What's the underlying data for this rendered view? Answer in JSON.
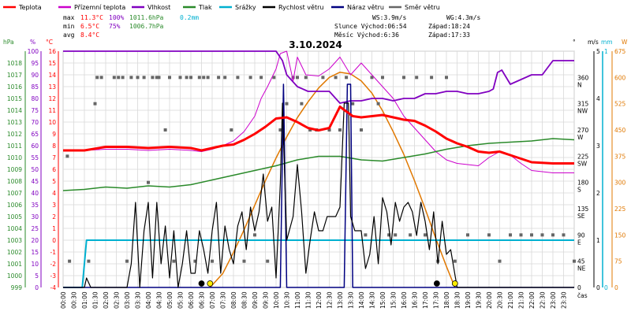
{
  "legend": [
    {
      "label": "Teplota",
      "color": "#ff0000"
    },
    {
      "label": "Přízemní teplota",
      "color": "#cc00cc"
    },
    {
      "label": "Vlhkost",
      "color": "#8000c0"
    },
    {
      "label": "Tlak",
      "color": "#2a8a2a"
    },
    {
      "label": "Srážky",
      "color": "#00b0d0"
    },
    {
      "label": "Rychlost větru",
      "color": "#000000"
    },
    {
      "label": "Náraz větru",
      "color": "#000080"
    },
    {
      "label": "Směr větru",
      "color": "#666666"
    }
  ],
  "stats": {
    "max_label": "max",
    "max_temp": "11.3°C",
    "max_hum": "100%",
    "max_press": "1011.6hPa",
    "max_rain": "0.2mm",
    "min_label": "min",
    "min_temp": "6.5°C",
    "min_hum": "75%",
    "min_press": "1006.7hPa",
    "avg_label": "avg",
    "avg_temp": "8.4°C"
  },
  "wind_info": {
    "ws": "WS:3.9m/s",
    "wg": "WG:4.3m/s"
  },
  "sun_info": {
    "sunrise": "Slunce Východ:06:54",
    "sunset": "Západ:18:24"
  },
  "moon_info": {
    "rise": "Měsíc  Východ:6:36",
    "set": "Západ:17:33"
  },
  "axes_units": {
    "hpa": "hPa",
    "pct": "%",
    "degc": "°C",
    "deg": "°",
    "ms": "m/s",
    "mm": "mm",
    "wm2": "W"
  },
  "xlabel": "čas",
  "colors": {
    "temp": "#ff0000",
    "ground": "#cc00cc",
    "hum": "#8000c0",
    "press": "#2a8a2a",
    "rain": "#00b0d0",
    "wind": "#000000",
    "gust": "#000080",
    "dir": "#666666",
    "solar": "#e07800",
    "grid": "#d8d8d8"
  },
  "chart_data": {
    "type": "line",
    "title": "3.10.2024",
    "xlim": [
      0,
      24
    ],
    "x_ticks": [
      "00:00",
      "00:30",
      "01:00",
      "01:30",
      "02:00",
      "02:30",
      "03:00",
      "03:30",
      "04:00",
      "04:30",
      "05:00",
      "05:30",
      "06:00",
      "06:30",
      "07:00",
      "07:30",
      "08:00",
      "08:30",
      "09:00",
      "09:30",
      "10:00",
      "10:30",
      "11:00",
      "11:30",
      "12:00",
      "12:30",
      "13:00",
      "13:30",
      "14:00",
      "14:30",
      "15:00",
      "15:30",
      "16:00",
      "16:30",
      "17:00",
      "17:30",
      "18:00",
      "18:30",
      "19:00",
      "19:30",
      "20:00",
      "20:30",
      "21:00",
      "21:30",
      "22:00",
      "22:30",
      "23:00",
      "23:30"
    ],
    "axes": {
      "pressure_hpa": {
        "ylim": [
          999,
          1019
        ],
        "ticks": [
          999,
          1000,
          1001,
          1002,
          1003,
          1004,
          1005,
          1006,
          1007,
          1008,
          1009,
          1010,
          1011,
          1012,
          1013,
          1014,
          1015,
          1016,
          1017,
          1018
        ]
      },
      "humidity_pct": {
        "ylim": [
          0,
          100
        ],
        "ticks": [
          0,
          5,
          10,
          15,
          20,
          25,
          30,
          35,
          40,
          45,
          50,
          55,
          60,
          65,
          70,
          75,
          80,
          85,
          90,
          95,
          100
        ]
      },
      "temperature_c": {
        "ylim": [
          -4,
          16
        ],
        "ticks": [
          -4,
          -3,
          -2,
          -1,
          0,
          1,
          2,
          3,
          4,
          5,
          6,
          7,
          8,
          9,
          10,
          11,
          12,
          13,
          14,
          15,
          16
        ]
      },
      "wind_dir_deg": {
        "ticks": [
          {
            "v": 0,
            "l": "0"
          },
          {
            "v": 45,
            "l": "45"
          },
          {
            "v": 90,
            "l": "90"
          },
          {
            "v": 135,
            "l": "135"
          },
          {
            "v": 180,
            "l": "180"
          },
          {
            "v": 225,
            "l": "225"
          },
          {
            "v": 270,
            "l": "270"
          },
          {
            "v": 315,
            "l": "315"
          },
          {
            "v": 360,
            "l": "360"
          }
        ],
        "names": [
          {
            "v": 45,
            "l": "NE"
          },
          {
            "v": 90,
            "l": "E"
          },
          {
            "v": 135,
            "l": "SE"
          },
          {
            "v": 180,
            "l": "S"
          },
          {
            "v": 225,
            "l": "SW"
          },
          {
            "v": 270,
            "l": "W"
          },
          {
            "v": 315,
            "l": "NW"
          },
          {
            "v": 360,
            "l": "N"
          }
        ]
      },
      "wind_ms": {
        "ylim": [
          0,
          5
        ],
        "ticks": [
          0,
          1,
          2,
          3,
          4,
          5
        ]
      },
      "rain_mm": {
        "ylim": [
          0,
          1
        ],
        "ticks": [
          0,
          1
        ]
      },
      "solar_w": {
        "ylim": [
          0,
          675
        ],
        "ticks": [
          0,
          75,
          150,
          225,
          300,
          375,
          450,
          525,
          600,
          675
        ]
      }
    },
    "series": [
      {
        "name": "Teplota",
        "axis": "temperature_c",
        "x": [
          0,
          1,
          2,
          3,
          4,
          5,
          6,
          6.5,
          7,
          7.5,
          8,
          8.5,
          9,
          9.5,
          10,
          10.5,
          11,
          11.5,
          12,
          12.5,
          13,
          13.3,
          13.6,
          14,
          15,
          16,
          16.5,
          17,
          17.5,
          18,
          18.5,
          19,
          19.5,
          20,
          20.5,
          21,
          21.5,
          22,
          23,
          24
        ],
        "y": [
          7.6,
          7.6,
          7.9,
          7.9,
          7.8,
          7.9,
          7.8,
          7.6,
          7.8,
          8,
          8.1,
          8.5,
          9,
          9.6,
          10.3,
          10.4,
          10,
          9.5,
          9.3,
          9.5,
          11.3,
          10.9,
          10.5,
          10.4,
          10.6,
          10.2,
          10.1,
          9.7,
          9.2,
          8.6,
          8.2,
          7.9,
          7.5,
          7.4,
          7.5,
          7.2,
          6.9,
          6.6,
          6.5,
          6.5
        ]
      },
      {
        "name": "Přízemní teplota",
        "axis": "temperature_c",
        "x": [
          0,
          1,
          2,
          3,
          4,
          5,
          6,
          6.5,
          7,
          7.5,
          8,
          8.5,
          9,
          9.3,
          9.6,
          10,
          10.2,
          10.5,
          10.8,
          11,
          11.4,
          12,
          12.5,
          13,
          13.5,
          14,
          14.5,
          15,
          15.5,
          16,
          16.5,
          17,
          17.5,
          18,
          18.5,
          19,
          19.5,
          20,
          20.5,
          21,
          21.5,
          22,
          23,
          24
        ],
        "y": [
          7.6,
          7.6,
          7.7,
          7.7,
          7.6,
          7.7,
          7.6,
          7.5,
          7.7,
          8,
          8.4,
          9.2,
          10.5,
          12,
          13,
          14.5,
          15.8,
          16,
          13.5,
          15.5,
          14,
          13.9,
          14.5,
          15.5,
          14,
          15,
          14,
          13,
          12,
          10.5,
          9.5,
          8.5,
          7.5,
          6.8,
          6.5,
          6.4,
          6.3,
          7,
          7.5,
          7.2,
          6.5,
          5.9,
          5.7,
          5.7
        ]
      },
      {
        "name": "Vlhkost",
        "axis": "humidity_pct",
        "x": [
          0,
          1,
          2,
          3,
          4,
          5,
          6,
          7,
          8,
          9,
          10,
          10.3,
          10.5,
          11,
          11.5,
          12,
          12.5,
          13,
          13.5,
          14,
          14.5,
          15,
          15.5,
          16,
          16.5,
          17,
          17.5,
          18,
          18.5,
          19,
          19.5,
          20,
          20.2,
          20.4,
          20.6,
          21,
          21.5,
          22,
          22.5,
          23,
          24
        ],
        "y": [
          100,
          100,
          100,
          100,
          100,
          100,
          100,
          100,
          100,
          100,
          100,
          96,
          90,
          85,
          83,
          83,
          83,
          78,
          79,
          79,
          80,
          80,
          79,
          80,
          80,
          82,
          82,
          83,
          83,
          82,
          82,
          83,
          84,
          91,
          92,
          86,
          88,
          90,
          90,
          96,
          96
        ]
      },
      {
        "name": "Tlak",
        "axis": "pressure_hpa",
        "x": [
          0,
          1,
          2,
          3,
          4,
          5,
          6,
          7,
          8,
          9,
          10,
          11,
          12,
          13,
          14,
          15,
          16,
          17,
          18,
          19,
          20,
          21,
          22,
          23,
          24
        ],
        "y": [
          1007.2,
          1007.3,
          1007.5,
          1007.4,
          1007.6,
          1007.5,
          1007.7,
          1008.1,
          1008.5,
          1008.9,
          1009.3,
          1009.8,
          1010.1,
          1010.1,
          1009.8,
          1009.7,
          1010,
          1010.3,
          1010.7,
          1011,
          1011.2,
          1011.3,
          1011.4,
          1011.6,
          1011.5
        ]
      },
      {
        "name": "Srážky",
        "axis": "rain_mm",
        "x": [
          0,
          0.9,
          1.1,
          1.4,
          24
        ],
        "y": [
          0,
          0,
          0.2,
          0.2,
          0.2
        ]
      },
      {
        "name": "Rychlost větru",
        "axis": "wind_ms",
        "x": [
          0,
          0.5,
          1,
          1.1,
          1.3,
          1.6,
          2,
          2.5,
          3,
          3.2,
          3.4,
          3.6,
          3.8,
          4,
          4.2,
          4.4,
          4.6,
          4.8,
          5,
          5.2,
          5.4,
          5.6,
          5.8,
          6,
          6.2,
          6.4,
          6.6,
          6.8,
          7,
          7.2,
          7.4,
          7.6,
          7.8,
          8,
          8.2,
          8.4,
          8.6,
          8.8,
          9,
          9.2,
          9.4,
          9.6,
          9.8,
          10,
          10.2,
          10.3,
          10.5,
          10.8,
          11,
          11.2,
          11.4,
          11.6,
          11.8,
          12,
          12.2,
          12.4,
          12.6,
          12.8,
          13,
          13.2,
          13.4,
          13.5,
          13.7,
          14,
          14.2,
          14.4,
          14.6,
          14.8,
          15,
          15.2,
          15.4,
          15.6,
          15.8,
          16,
          16.2,
          16.4,
          16.6,
          16.8,
          17,
          17.2,
          17.4,
          17.6,
          17.8,
          18,
          18.2,
          18.5,
          19,
          20,
          21,
          22,
          23,
          24
        ],
        "y": [
          0,
          0,
          0,
          0.2,
          0,
          0,
          0,
          0,
          0,
          0.5,
          1.8,
          0,
          1.2,
          1.8,
          0.2,
          1.8,
          0.5,
          1.3,
          0.2,
          1.2,
          0,
          0.5,
          1.2,
          0.3,
          0.3,
          1.2,
          0.8,
          0.3,
          1.2,
          1.8,
          0.3,
          1.3,
          0.8,
          0.5,
          1.3,
          1.6,
          0.8,
          1.7,
          1.2,
          1.6,
          2.4,
          1.4,
          1.7,
          0.2,
          2.2,
          3.9,
          1,
          1.5,
          2.6,
          1.6,
          0.3,
          1,
          1.6,
          1.2,
          1.2,
          1.5,
          1.5,
          1.5,
          1.7,
          3.9,
          3.9,
          1.5,
          1.2,
          1.2,
          0.4,
          0.7,
          1.5,
          0.5,
          1.9,
          1.6,
          0.9,
          1.8,
          1.4,
          1.7,
          1.8,
          1.6,
          1.1,
          1.8,
          1.4,
          0.8,
          1.6,
          0.5,
          1.4,
          0.7,
          0.8,
          0,
          0,
          0,
          0,
          0,
          0,
          0
        ]
      },
      {
        "name": "Náraz větru",
        "axis": "wind_ms",
        "x": [
          0,
          10.2,
          10.35,
          10.5,
          13.2,
          13.35,
          13.5,
          13.6,
          24
        ],
        "y": [
          0,
          0,
          4.3,
          0,
          0,
          4.3,
          4.3,
          0,
          0
        ]
      },
      {
        "name": "Směr větru",
        "axis": "wind_dir_deg",
        "type": "scatter",
        "x": [
          0.2,
          0.3,
          1.2,
          1.5,
          1.6,
          1.8,
          2.4,
          2.6,
          2.8,
          3,
          3.2,
          3.5,
          3.8,
          4,
          4.2,
          4.4,
          4.5,
          4.8,
          5,
          5.2,
          5.5,
          5.8,
          6,
          6.2,
          6.4,
          6.6,
          6.8,
          7,
          7.3,
          7.6,
          7.9,
          8.2,
          8.5,
          8.8,
          9,
          9.3,
          9.6,
          9.9,
          10.2,
          10.5,
          10.8,
          11,
          11.2,
          11.4,
          11.6,
          11.9,
          12.2,
          12.5,
          12.8,
          13,
          13.3,
          13.6,
          14,
          14.2,
          14.5,
          14.8,
          15,
          15.3,
          15.6,
          16,
          16.3,
          16.6,
          17,
          17.3,
          17.6,
          18,
          18.4,
          19,
          20,
          20.5,
          21,
          21.5,
          22,
          22.5,
          23,
          23.5,
          24
        ],
        "y": [
          225,
          45,
          45,
          315,
          360,
          360,
          360,
          360,
          360,
          45,
          360,
          360,
          360,
          180,
          360,
          360,
          360,
          270,
          360,
          45,
          360,
          360,
          360,
          45,
          360,
          360,
          360,
          45,
          360,
          360,
          270,
          360,
          45,
          360,
          90,
          360,
          45,
          360,
          270,
          315,
          360,
          360,
          315,
          360,
          270,
          270,
          360,
          270,
          360,
          270,
          360,
          315,
          270,
          90,
          360,
          315,
          360,
          90,
          90,
          360,
          90,
          360,
          90,
          360,
          45,
          360,
          45,
          90,
          90,
          45,
          90,
          90,
          90,
          90,
          90,
          90,
          45
        ]
      },
      {
        "name": "solar",
        "axis": "solar_w",
        "type": "area",
        "x": [
          6.9,
          7.5,
          8,
          8.5,
          9,
          9.5,
          10,
          10.5,
          11,
          11.5,
          12,
          12.5,
          13,
          13.5,
          14,
          14.5,
          15,
          15.5,
          16,
          16.5,
          17,
          17.5,
          18,
          18.4
        ],
        "y": [
          0,
          40,
          100,
          165,
          235,
          305,
          370,
          430,
          485,
          530,
          570,
          600,
          615,
          610,
          590,
          555,
          505,
          445,
          380,
          305,
          225,
          140,
          60,
          0
        ]
      }
    ],
    "markers": [
      {
        "x": 6.5,
        "kind": "moon-rise",
        "fill": "#000000"
      },
      {
        "x": 6.9,
        "kind": "sun-rise",
        "fill": "#ffee00"
      },
      {
        "x": 17.55,
        "kind": "moon-set",
        "fill": "#000000"
      },
      {
        "x": 18.4,
        "kind": "sun-set",
        "fill": "#ffee00"
      }
    ]
  }
}
